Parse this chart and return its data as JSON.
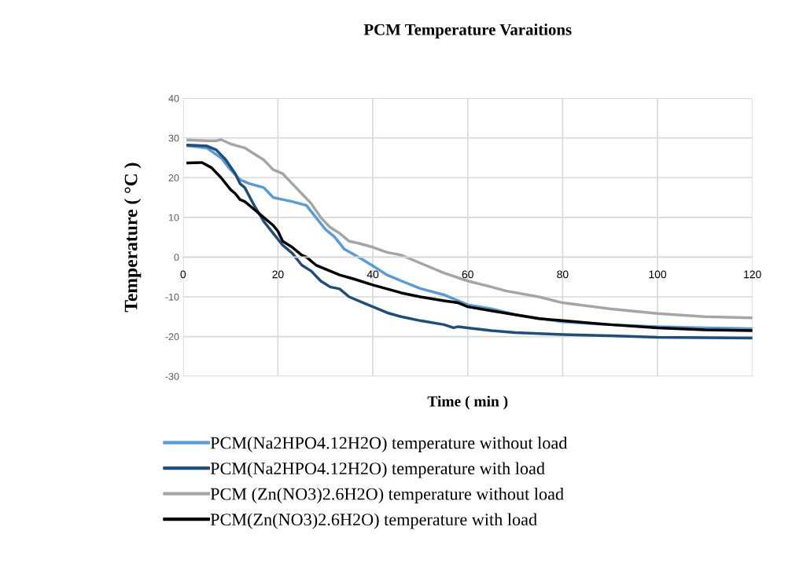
{
  "chart_data": {
    "type": "line",
    "title": "PCM Temperature Varaitions",
    "xlabel": "Time ( min )",
    "ylabel": "Temperature ( °C )",
    "xlim": [
      0,
      120
    ],
    "xticks": [
      0,
      20,
      40,
      60,
      80,
      100,
      120
    ],
    "ylim": [
      -30,
      40
    ],
    "yticks": [
      -30,
      -20,
      -10,
      0,
      10,
      20,
      30,
      40
    ],
    "grid": true,
    "legend": "bottom",
    "marker": "none",
    "line_style": "solid",
    "series": [
      {
        "name": "PCM(Na2HPO4.12H2O) temperature without load",
        "color": "#5b9bd5",
        "x": [
          1,
          5,
          8,
          10,
          12,
          14,
          17,
          19,
          21,
          23,
          26,
          28,
          30,
          32,
          34,
          37,
          40,
          43,
          46,
          50,
          55,
          60,
          65,
          70,
          80,
          90,
          100,
          110,
          120
        ],
        "values": [
          28,
          27.5,
          25,
          22,
          19.5,
          18.5,
          17.5,
          15,
          14.5,
          14,
          13,
          10,
          7,
          5,
          2,
          0,
          -2.2,
          -4.5,
          -6,
          -7.9,
          -9.5,
          -12,
          -13,
          -14.5,
          -16.3,
          -17,
          -17.5,
          -17.8,
          -18
        ]
      },
      {
        "name": "PCM(Na2HPO4.12H2O) temperature with load",
        "color": "#1f4e79",
        "x": [
          1,
          5,
          7,
          9,
          11,
          12,
          13,
          15,
          17,
          19,
          21,
          23,
          25,
          27,
          29,
          31,
          33,
          35,
          38,
          40,
          43,
          46,
          50,
          55,
          57,
          58,
          60,
          65,
          70,
          80,
          90,
          100,
          110,
          120
        ],
        "values": [
          28.2,
          28,
          27,
          24.5,
          21,
          18.5,
          17.5,
          13,
          9,
          6,
          3,
          1,
          -2,
          -3.5,
          -6,
          -7.5,
          -8,
          -10,
          -11.5,
          -12.5,
          -14,
          -15,
          -16,
          -17,
          -17.8,
          -17.5,
          -17.8,
          -18.5,
          -19,
          -19.5,
          -19.8,
          -20.2,
          -20.3,
          -20.4
        ]
      },
      {
        "name": "PCM (Zn(NO3)2.6H2O) temperature without load",
        "color": "#a5a5a5",
        "x": [
          1,
          5,
          7,
          8,
          10,
          13,
          15,
          17,
          19,
          21,
          23,
          25,
          27,
          29,
          31,
          33,
          35,
          37,
          40,
          43,
          46,
          50,
          55,
          60,
          65,
          68,
          75,
          80,
          90,
          100,
          110,
          120
        ],
        "values": [
          29.5,
          29.3,
          29.3,
          29.6,
          28.5,
          27.5,
          26,
          24.5,
          22,
          21,
          18.5,
          16,
          13.5,
          10,
          7.5,
          6,
          4,
          3.5,
          2.5,
          1.2,
          0.5,
          -1.5,
          -4,
          -6,
          -7.5,
          -8.5,
          -10,
          -11.5,
          -13,
          -14.2,
          -15,
          -15.3
        ]
      },
      {
        "name": "PCM(Zn(NO3)2.6H2O) temperature with load",
        "color": "#000000",
        "x": [
          1,
          4,
          6,
          8,
          10,
          11,
          12,
          13,
          15,
          17,
          19,
          20,
          21,
          23,
          25,
          26,
          28,
          30,
          33,
          36,
          40,
          43,
          46,
          50,
          55,
          58,
          60,
          65,
          70,
          75,
          80,
          90,
          100,
          110,
          120
        ],
        "values": [
          23.7,
          23.8,
          22.5,
          20,
          17,
          16,
          14.5,
          14,
          12,
          10,
          8,
          6.5,
          4,
          2.5,
          0.5,
          0,
          -2,
          -3,
          -4.5,
          -5.5,
          -7,
          -8,
          -9,
          -10,
          -11,
          -11.5,
          -12.5,
          -13.5,
          -14.5,
          -15.5,
          -16,
          -17,
          -17.8,
          -18.3,
          -18.5
        ]
      }
    ]
  }
}
